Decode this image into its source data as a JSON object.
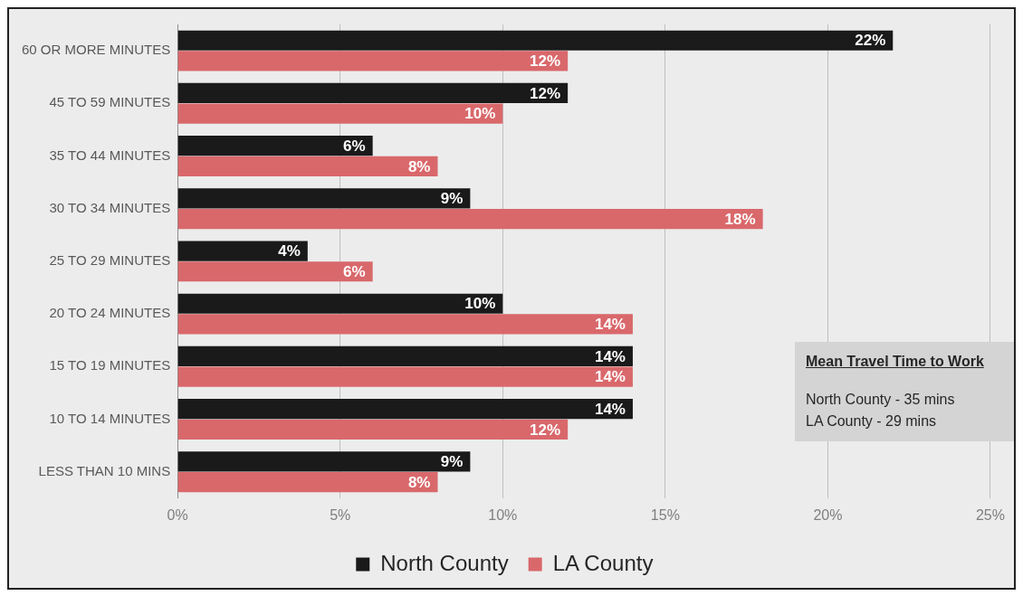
{
  "chart_data": {
    "type": "bar",
    "orientation": "horizontal",
    "categories": [
      "60 OR MORE MINUTES",
      "45 TO 59 MINUTES",
      "35 TO 44 MINUTES",
      "30 TO 34 MINUTES",
      "25 TO 29 MINUTES",
      "20 TO 24 MINUTES",
      "15 TO 19 MINUTES",
      "10 TO 14 MINUTES",
      "LESS THAN 10 MINS"
    ],
    "series": [
      {
        "name": "North County",
        "color": "#1a1a1a",
        "values": [
          22,
          12,
          6,
          9,
          4,
          10,
          14,
          14,
          9
        ],
        "value_labels": [
          "22%",
          "12%",
          "6%",
          "9%",
          "4%",
          "10%",
          "14%",
          "14%",
          "9%"
        ]
      },
      {
        "name": "LA County",
        "color": "#d9686b",
        "values": [
          12,
          10,
          8,
          18,
          6,
          14,
          14,
          12,
          8
        ],
        "value_labels": [
          "12%",
          "10%",
          "8%",
          "18%",
          "6%",
          "14%",
          "14%",
          "12%",
          "8%"
        ]
      }
    ],
    "xlim": [
      0,
      25
    ],
    "xticks": [
      {
        "value": 0,
        "label": "0%"
      },
      {
        "value": 5,
        "label": "5%"
      },
      {
        "value": 10,
        "label": "10%"
      },
      {
        "value": 15,
        "label": "15%"
      },
      {
        "value": 20,
        "label": "20%"
      },
      {
        "value": 25,
        "label": "25%"
      }
    ],
    "grid": "x",
    "legend": "bottom",
    "annotations": [
      "Mean Travel Time to Work",
      "North County - 35 mins",
      "LA County - 29 mins"
    ]
  }
}
